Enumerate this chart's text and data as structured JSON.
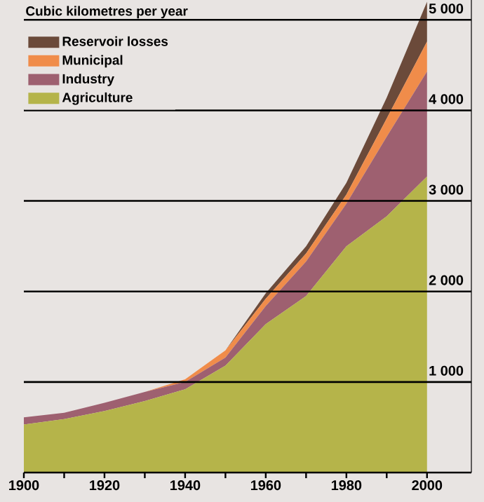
{
  "chart_data": {
    "type": "area",
    "stacked": true,
    "ylabel": "Cubic kilometres per year",
    "x": [
      1900,
      1910,
      1920,
      1930,
      1940,
      1950,
      1960,
      1970,
      1980,
      1990,
      2000
    ],
    "series": [
      {
        "name": "Agriculture",
        "color": "#b5b44a",
        "values": [
          530,
          590,
          680,
          790,
          920,
          1180,
          1640,
          1950,
          2500,
          2830,
          3270
        ]
      },
      {
        "name": "Industry",
        "color": "#9e6070",
        "values": [
          80,
          70,
          90,
          100,
          80,
          90,
          200,
          380,
          470,
          880,
          1160
        ]
      },
      {
        "name": "Municipal",
        "color": "#f08c4a",
        "values": [
          0,
          0,
          0,
          0,
          30,
          80,
          80,
          90,
          100,
          200,
          330
        ]
      },
      {
        "name": "Reservoir losses",
        "color": "#6b4a3a",
        "values": [
          0,
          0,
          0,
          0,
          0,
          0,
          60,
          80,
          130,
          230,
          440
        ]
      }
    ],
    "xlim": [
      1900,
      2011
    ],
    "ylim": [
      0,
      5250
    ],
    "xticks": [
      1900,
      {
        "value": 1910,
        "label": null
      },
      1920,
      {
        "value": 1930,
        "label": null
      },
      1940,
      {
        "value": 1950,
        "label": null
      },
      1960,
      {
        "value": 1970,
        "label": null
      },
      1980,
      {
        "value": 1990,
        "label": null
      },
      2000
    ],
    "yticks": [
      {
        "value": 1000,
        "label": "1 000"
      },
      {
        "value": 2000,
        "label": "2 000"
      },
      {
        "value": 3000,
        "label": "3 000"
      },
      {
        "value": 4000,
        "label": "4 000"
      },
      {
        "value": 5000,
        "label": "5 000"
      }
    ],
    "grid": "y",
    "legend": "top left"
  }
}
